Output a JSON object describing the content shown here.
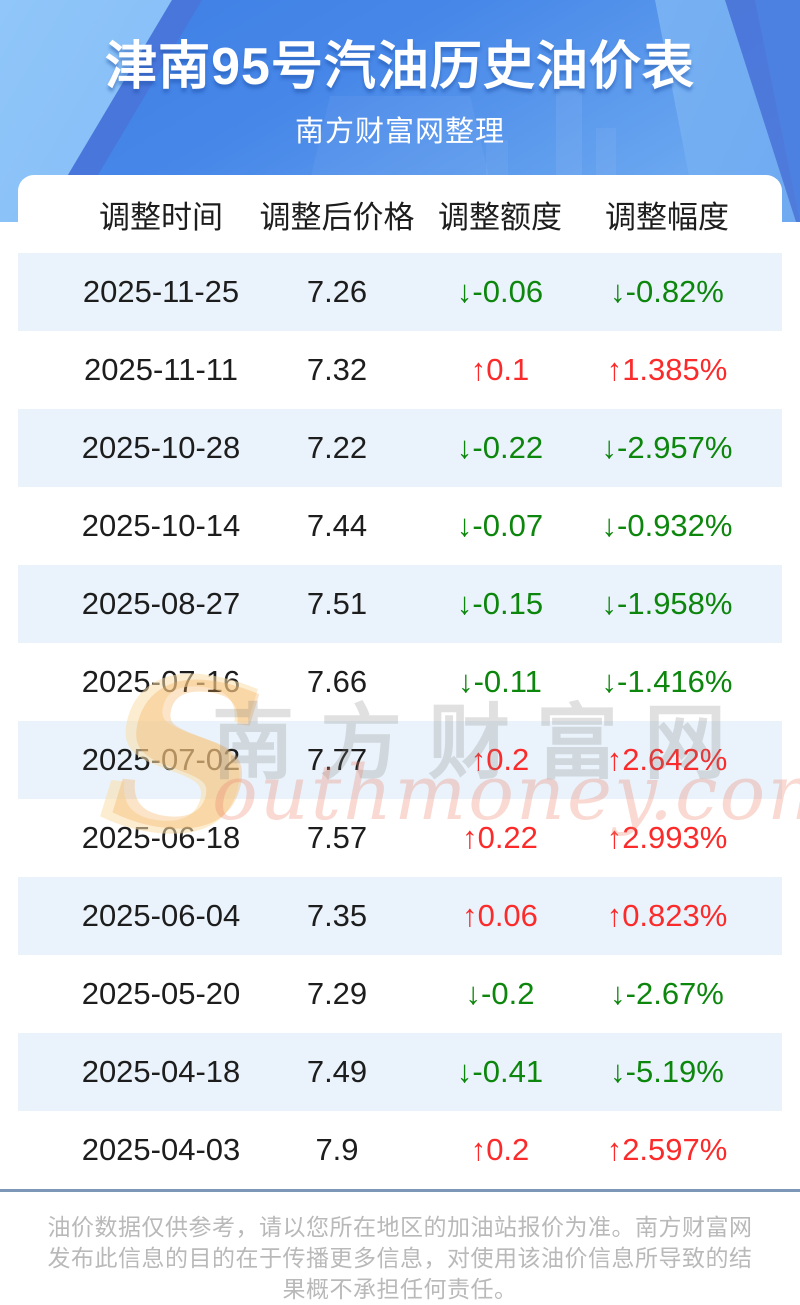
{
  "hero": {
    "title": "津南95号汽油历史油价表",
    "subtitle": "南方财富网整理"
  },
  "table": {
    "headers": [
      "调整时间",
      "调整后价格",
      "调整额度",
      "调整幅度"
    ],
    "rows": [
      {
        "date": "2025-11-25",
        "price": "7.26",
        "change": "↓-0.06",
        "percent": "↓-0.82%",
        "direction": "down"
      },
      {
        "date": "2025-11-11",
        "price": "7.32",
        "change": "↑0.1",
        "percent": "↑1.385%",
        "direction": "up"
      },
      {
        "date": "2025-10-28",
        "price": "7.22",
        "change": "↓-0.22",
        "percent": "↓-2.957%",
        "direction": "down"
      },
      {
        "date": "2025-10-14",
        "price": "7.44",
        "change": "↓-0.07",
        "percent": "↓-0.932%",
        "direction": "down"
      },
      {
        "date": "2025-08-27",
        "price": "7.51",
        "change": "↓-0.15",
        "percent": "↓-1.958%",
        "direction": "down"
      },
      {
        "date": "2025-07-16",
        "price": "7.66",
        "change": "↓-0.11",
        "percent": "↓-1.416%",
        "direction": "down"
      },
      {
        "date": "2025-07-02",
        "price": "7.77",
        "change": "↑0.2",
        "percent": "↑2.642%",
        "direction": "up"
      },
      {
        "date": "2025-06-18",
        "price": "7.57",
        "change": "↑0.22",
        "percent": "↑2.993%",
        "direction": "up"
      },
      {
        "date": "2025-06-04",
        "price": "7.35",
        "change": "↑0.06",
        "percent": "↑0.823%",
        "direction": "up"
      },
      {
        "date": "2025-05-20",
        "price": "7.29",
        "change": "↓-0.2",
        "percent": "↓-2.67%",
        "direction": "down"
      },
      {
        "date": "2025-04-18",
        "price": "7.49",
        "change": "↓-0.41",
        "percent": "↓-5.19%",
        "direction": "down"
      },
      {
        "date": "2025-04-03",
        "price": "7.9",
        "change": "↑0.2",
        "percent": "↑2.597%",
        "direction": "up"
      }
    ]
  },
  "watermark": {
    "s": "S",
    "cn": "南方财富网",
    "en": "outhmoney.com"
  },
  "footer": {
    "lines": [
      "油价数据仅供参考，请以您所在地区的加油站报价为准。南方财富网",
      "发布此信息的目的在于传播更多信息，对使用该油价信息所导致的结",
      "果概不承担任何责任。"
    ]
  },
  "colors": {
    "up": "#fb2b2b",
    "down": "#0c860c",
    "stripe": "#eaf3fb",
    "header_text": "#9b9b9b",
    "hero_blue": "#4285e6",
    "rule": "#7d98b6"
  }
}
